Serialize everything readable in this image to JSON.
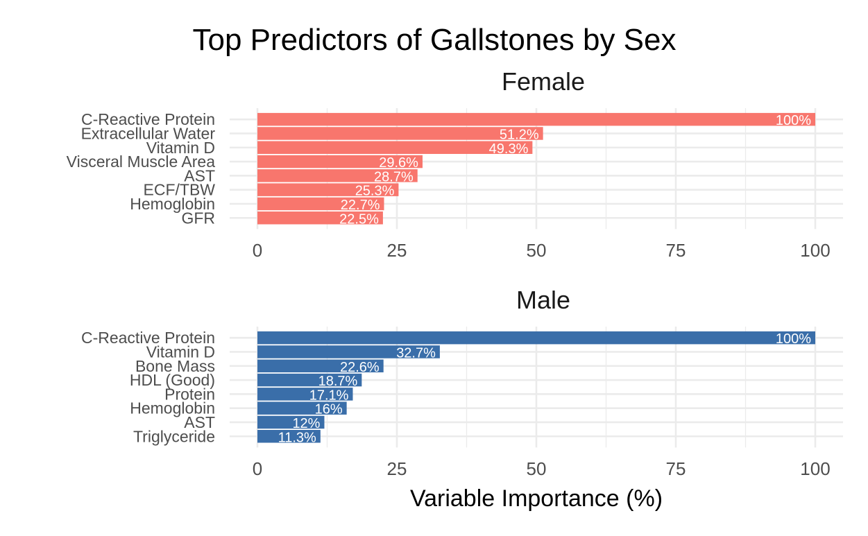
{
  "title": "Top Predictors of Gallstones by Sex",
  "chart_data": {
    "type": "bar",
    "orientation": "horizontal",
    "title": "Top Predictors of Gallstones by Sex",
    "xlabel": "Variable Importance (%)",
    "ylabel": "",
    "xlim": [
      0,
      100
    ],
    "x_ticks": [
      "0",
      "25",
      "50",
      "75",
      "100"
    ],
    "grid": true,
    "panels": [
      {
        "name": "Female",
        "color": "#F8766D",
        "categories": [
          "C-Reactive Protein",
          "Extracellular Water",
          "Vitamin D",
          "Visceral Muscle Area",
          "AST",
          "ECF/TBW",
          "Hemoglobin",
          "GFR"
        ],
        "values": [
          100,
          51.2,
          49.3,
          29.6,
          28.7,
          25.3,
          22.7,
          22.5
        ],
        "labels": [
          "100%",
          "51.2%",
          "49.3%",
          "29.6%",
          "28.7%",
          "25.3%",
          "22.7%",
          "22.5%"
        ]
      },
      {
        "name": "Male",
        "color": "#3A6EA9",
        "categories": [
          "C-Reactive Protein",
          "Vitamin D",
          "Bone Mass",
          "HDL (Good)",
          "Protein",
          "Hemoglobin",
          "AST",
          "Triglyceride"
        ],
        "values": [
          100,
          32.7,
          22.6,
          18.7,
          17.1,
          16,
          12,
          11.3
        ],
        "labels": [
          "100%",
          "32.7%",
          "22.6%",
          "18.7%",
          "17.1%",
          "16%",
          "12%",
          "11.3%"
        ]
      }
    ]
  }
}
